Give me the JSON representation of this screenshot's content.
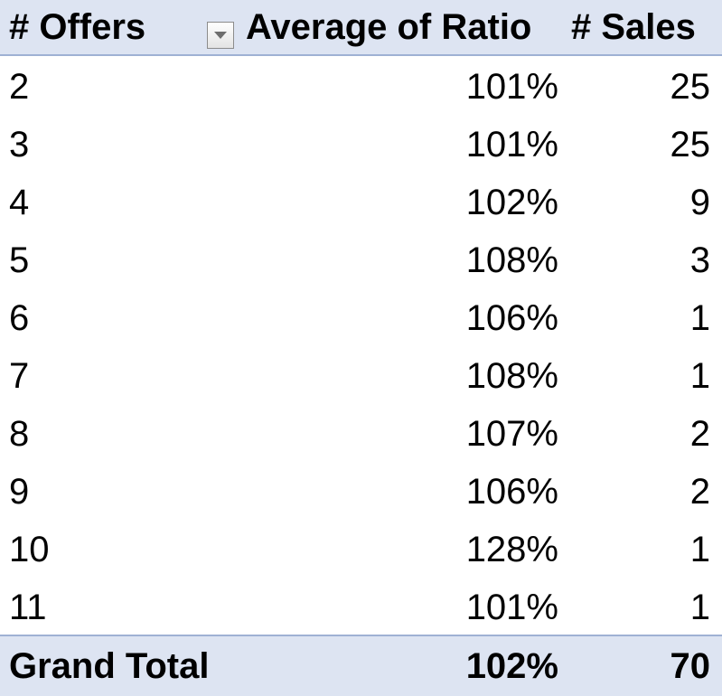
{
  "table": {
    "headers": {
      "offers": "# Offers",
      "ratio": "Average of Ratio",
      "sales": "# Sales"
    },
    "rows": [
      {
        "offers": "2",
        "ratio": "101%",
        "sales": "25"
      },
      {
        "offers": "3",
        "ratio": "101%",
        "sales": "25"
      },
      {
        "offers": "4",
        "ratio": "102%",
        "sales": "9"
      },
      {
        "offers": "5",
        "ratio": "108%",
        "sales": "3"
      },
      {
        "offers": "6",
        "ratio": "106%",
        "sales": "1"
      },
      {
        "offers": "7",
        "ratio": "108%",
        "sales": "1"
      },
      {
        "offers": "8",
        "ratio": "107%",
        "sales": "2"
      },
      {
        "offers": "9",
        "ratio": "106%",
        "sales": "2"
      },
      {
        "offers": "10",
        "ratio": "128%",
        "sales": "1"
      },
      {
        "offers": "11",
        "ratio": "101%",
        "sales": "1"
      }
    ],
    "grand_total": {
      "label": "Grand Total",
      "ratio": "102%",
      "sales": "70"
    }
  },
  "colors": {
    "header_fill": "#dde4f2",
    "header_border": "#9fb1d4",
    "text": "#000000"
  },
  "icons": {
    "filter": "dropdown-arrow-icon"
  }
}
